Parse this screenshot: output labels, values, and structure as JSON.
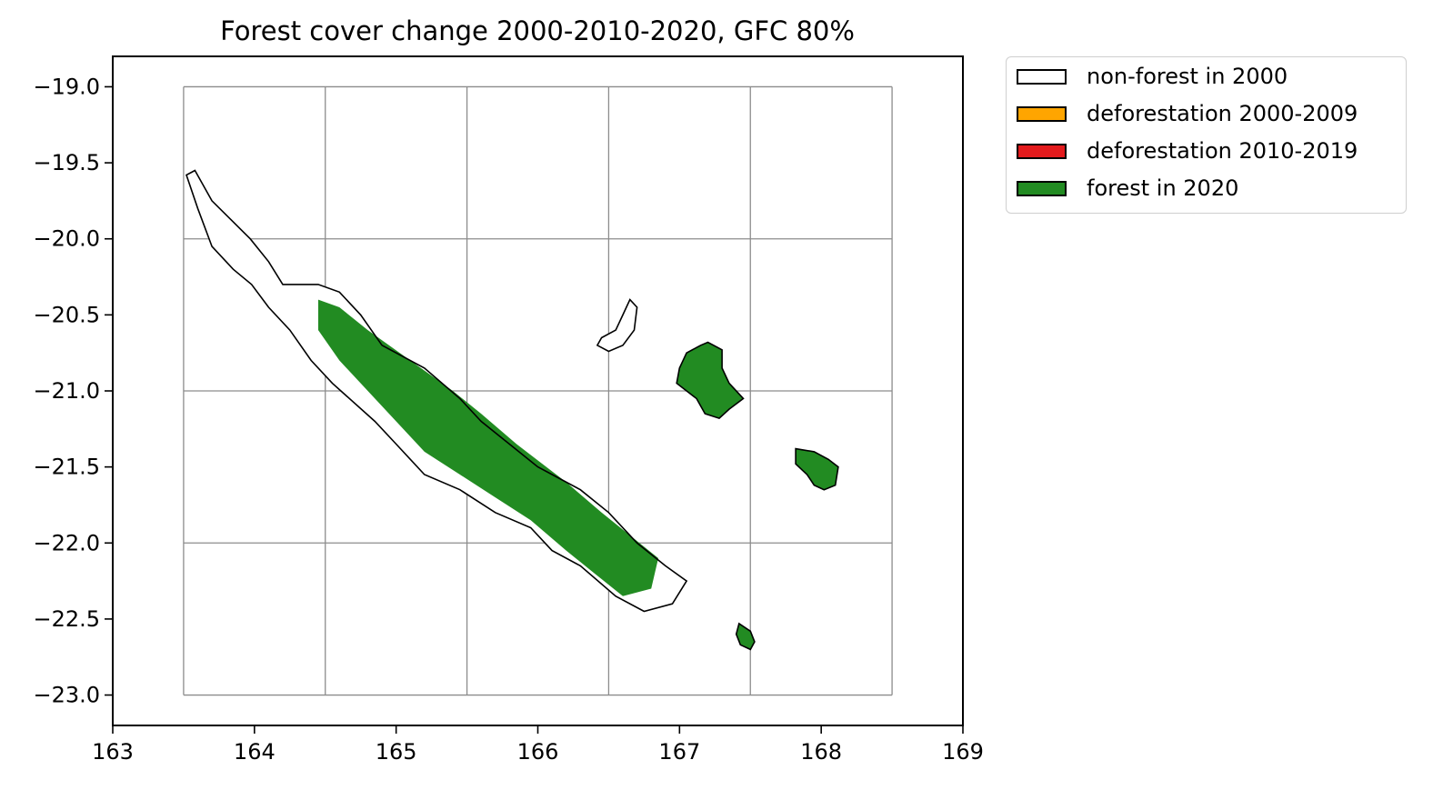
{
  "title": "Forest cover change 2000-2010-2020, GFC 80%",
  "chart_data": {
    "type": "map",
    "title": "Forest cover change 2000-2010-2020, GFC 80%",
    "xlim": [
      163,
      169
    ],
    "ylim": [
      -23.2,
      -18.8
    ],
    "x_ticks": [
      163,
      164,
      165,
      166,
      167,
      168,
      169
    ],
    "x_tick_labels": [
      "163",
      "164",
      "165",
      "166",
      "167",
      "168",
      "169"
    ],
    "y_ticks": [
      -19.0,
      -19.5,
      -20.0,
      -20.5,
      -21.0,
      -21.5,
      -22.0,
      -22.5,
      -23.0
    ],
    "y_tick_labels": [
      "−19.0",
      "−19.5",
      "−20.0",
      "−20.5",
      "−21.0",
      "−21.5",
      "−22.0",
      "−22.5",
      "−23.0"
    ],
    "grid": {
      "shown": true,
      "extent_lon": [
        163.5,
        168.5
      ],
      "extent_lat": [
        -23.0,
        -19.0
      ],
      "lon_lines": [
        163.5,
        164.5,
        165.5,
        166.5,
        167.5,
        168.5
      ],
      "lat_lines": [
        -19.0,
        -20.0,
        -21.0,
        -22.0,
        -23.0
      ],
      "color": "#8c8c8c"
    },
    "legend_position": "outside-top-right",
    "legend": [
      {
        "label": "non-forest in 2000",
        "color": "#ffffff"
      },
      {
        "label": "deforestation 2000-2009",
        "color": "#ffa500"
      },
      {
        "label": "deforestation 2010-2019",
        "color": "#e31a1c"
      },
      {
        "label": "forest in 2020",
        "color": "#228b22"
      }
    ],
    "islands": [
      {
        "coast": [
          [
            163.58,
            -19.55
          ],
          [
            163.7,
            -19.75
          ],
          [
            163.97,
            -20.0
          ],
          [
            164.1,
            -20.15
          ],
          [
            164.2,
            -20.3
          ],
          [
            164.45,
            -20.3
          ],
          [
            164.6,
            -20.35
          ],
          [
            164.75,
            -20.5
          ],
          [
            164.9,
            -20.7
          ],
          [
            165.2,
            -20.85
          ],
          [
            165.45,
            -21.05
          ],
          [
            165.6,
            -21.2
          ],
          [
            165.8,
            -21.35
          ],
          [
            166.0,
            -21.5
          ],
          [
            166.3,
            -21.65
          ],
          [
            166.5,
            -21.8
          ],
          [
            166.7,
            -22.0
          ],
          [
            166.9,
            -22.15
          ],
          [
            167.05,
            -22.25
          ],
          [
            166.95,
            -22.4
          ],
          [
            166.75,
            -22.45
          ],
          [
            166.55,
            -22.35
          ],
          [
            166.3,
            -22.15
          ],
          [
            166.1,
            -22.05
          ],
          [
            165.95,
            -21.9
          ],
          [
            165.7,
            -21.8
          ],
          [
            165.45,
            -21.65
          ],
          [
            165.2,
            -21.55
          ],
          [
            165.0,
            -21.35
          ],
          [
            164.85,
            -21.2
          ],
          [
            164.55,
            -20.95
          ],
          [
            164.4,
            -20.8
          ],
          [
            164.25,
            -20.6
          ],
          [
            164.1,
            -20.45
          ],
          [
            163.98,
            -20.3
          ],
          [
            163.85,
            -20.2
          ],
          [
            163.7,
            -20.05
          ],
          [
            163.6,
            -19.8
          ],
          [
            163.52,
            -19.58
          ]
        ],
        "forest_band": [
          [
            164.45,
            -20.4
          ],
          [
            164.6,
            -20.45
          ],
          [
            164.8,
            -20.6
          ],
          [
            165.1,
            -20.8
          ],
          [
            165.4,
            -21.0
          ],
          [
            165.6,
            -21.15
          ],
          [
            165.85,
            -21.35
          ],
          [
            166.2,
            -21.6
          ],
          [
            166.45,
            -21.8
          ],
          [
            166.65,
            -21.95
          ],
          [
            166.85,
            -22.1
          ],
          [
            166.8,
            -22.3
          ],
          [
            166.6,
            -22.35
          ],
          [
            166.4,
            -22.2
          ],
          [
            166.2,
            -22.05
          ],
          [
            165.95,
            -21.85
          ],
          [
            165.7,
            -21.7
          ],
          [
            165.45,
            -21.55
          ],
          [
            165.2,
            -21.4
          ],
          [
            165.0,
            -21.2
          ],
          [
            164.8,
            -21.0
          ],
          [
            164.6,
            -20.8
          ],
          [
            164.45,
            -20.6
          ]
        ]
      },
      {
        "coast": [
          [
            166.45,
            -20.65
          ],
          [
            166.55,
            -20.6
          ],
          [
            166.6,
            -20.5
          ],
          [
            166.65,
            -20.4
          ],
          [
            166.7,
            -20.45
          ],
          [
            166.68,
            -20.6
          ],
          [
            166.6,
            -20.7
          ],
          [
            166.5,
            -20.74
          ],
          [
            166.42,
            -20.7
          ]
        ],
        "forest_band": []
      },
      {
        "coast": [
          [
            167.05,
            -20.75
          ],
          [
            167.15,
            -20.7
          ],
          [
            167.2,
            -20.68
          ],
          [
            167.3,
            -20.73
          ],
          [
            167.3,
            -20.85
          ],
          [
            167.35,
            -20.95
          ],
          [
            167.45,
            -21.05
          ],
          [
            167.35,
            -21.12
          ],
          [
            167.28,
            -21.18
          ],
          [
            167.18,
            -21.15
          ],
          [
            167.12,
            -21.05
          ],
          [
            167.05,
            -21.0
          ],
          [
            166.98,
            -20.95
          ],
          [
            167.0,
            -20.85
          ]
        ],
        "forest_band": [
          [
            167.05,
            -20.75
          ],
          [
            167.15,
            -20.7
          ],
          [
            167.2,
            -20.68
          ],
          [
            167.3,
            -20.73
          ],
          [
            167.3,
            -20.85
          ],
          [
            167.35,
            -20.95
          ],
          [
            167.45,
            -21.05
          ],
          [
            167.35,
            -21.12
          ],
          [
            167.28,
            -21.18
          ],
          [
            167.18,
            -21.15
          ],
          [
            167.12,
            -21.05
          ],
          [
            167.05,
            -21.0
          ],
          [
            166.98,
            -20.95
          ],
          [
            167.0,
            -20.85
          ]
        ]
      },
      {
        "coast": [
          [
            167.82,
            -21.38
          ],
          [
            167.95,
            -21.4
          ],
          [
            168.05,
            -21.45
          ],
          [
            168.12,
            -21.5
          ],
          [
            168.1,
            -21.62
          ],
          [
            168.02,
            -21.65
          ],
          [
            167.95,
            -21.62
          ],
          [
            167.9,
            -21.55
          ],
          [
            167.82,
            -21.48
          ]
        ],
        "forest_band": [
          [
            167.82,
            -21.38
          ],
          [
            167.95,
            -21.4
          ],
          [
            168.05,
            -21.45
          ],
          [
            168.12,
            -21.5
          ],
          [
            168.1,
            -21.62
          ],
          [
            168.02,
            -21.65
          ],
          [
            167.95,
            -21.62
          ],
          [
            167.9,
            -21.55
          ],
          [
            167.82,
            -21.48
          ]
        ]
      },
      {
        "coast": [
          [
            167.42,
            -22.53
          ],
          [
            167.5,
            -22.58
          ],
          [
            167.53,
            -22.65
          ],
          [
            167.5,
            -22.7
          ],
          [
            167.43,
            -22.67
          ],
          [
            167.4,
            -22.6
          ]
        ],
        "forest_band": [
          [
            167.42,
            -22.53
          ],
          [
            167.5,
            -22.58
          ],
          [
            167.53,
            -22.65
          ],
          [
            167.5,
            -22.7
          ],
          [
            167.43,
            -22.67
          ],
          [
            167.4,
            -22.6
          ]
        ]
      }
    ]
  }
}
